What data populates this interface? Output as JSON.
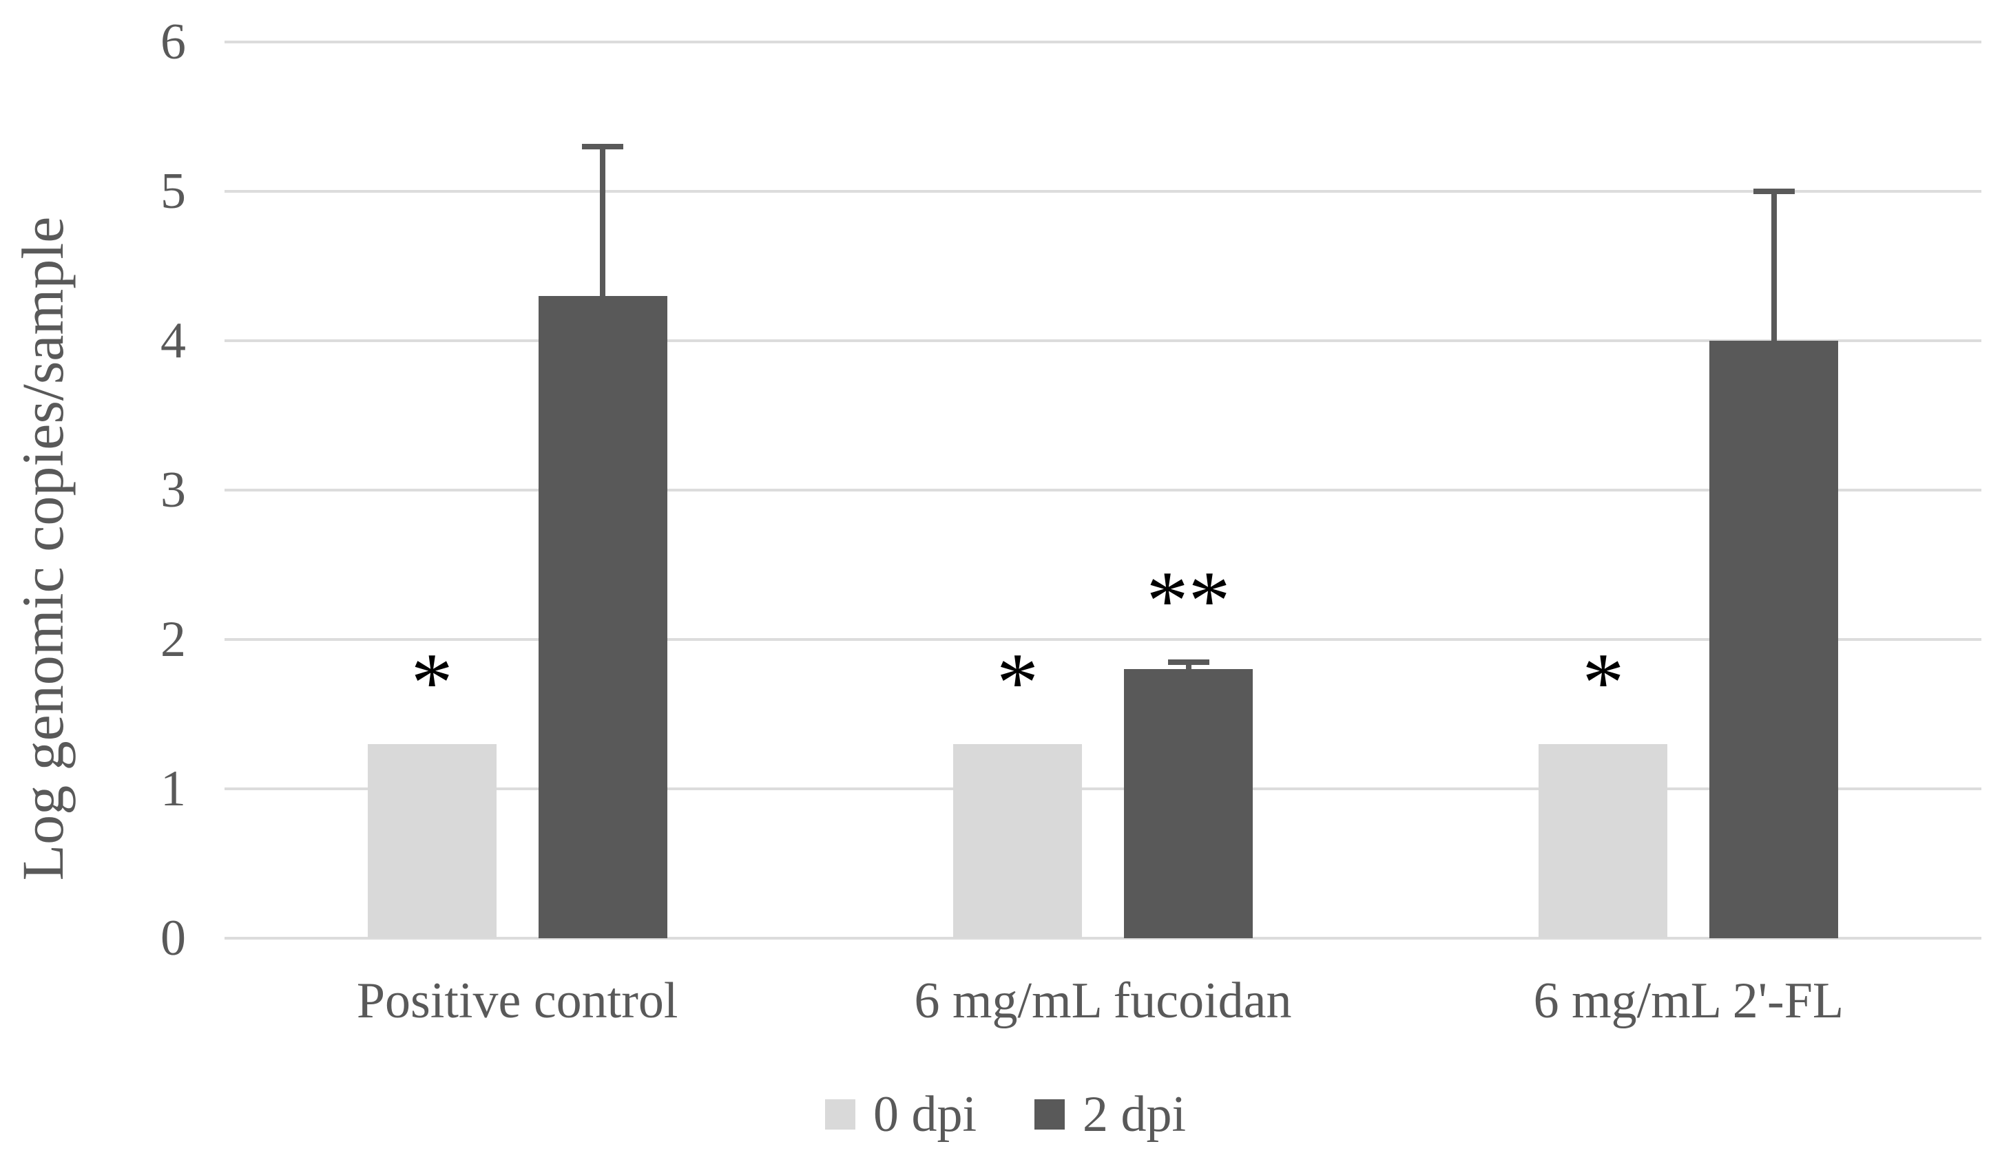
{
  "chart_data": {
    "type": "bar",
    "title": "",
    "xlabel": "",
    "ylabel": "Log genomic copies/sample",
    "categories": [
      "Positive control",
      "6 mg/mL fucoidan",
      "6 mg/mL 2'-FL"
    ],
    "series": [
      {
        "name": "0 dpi",
        "color": "#d9d9d9",
        "values": [
          1.3,
          1.3,
          1.3
        ],
        "errors": [
          0,
          0,
          0
        ],
        "annotations": [
          "*",
          "*",
          "*"
        ]
      },
      {
        "name": "2 dpi",
        "color": "#595959",
        "values": [
          4.3,
          1.8,
          4.0
        ],
        "errors": [
          1.0,
          0.05,
          1.0
        ],
        "annotations": [
          "",
          "**",
          ""
        ]
      }
    ],
    "ylim": [
      0,
      6
    ],
    "yticks": [
      0,
      1,
      2,
      3,
      4,
      5,
      6
    ],
    "grid": true,
    "gridline_color": "#dcdcdc",
    "error_bar_color": "#595959",
    "annotation_color": "#000000",
    "text_color": "#595959",
    "legend_position": "bottom"
  }
}
